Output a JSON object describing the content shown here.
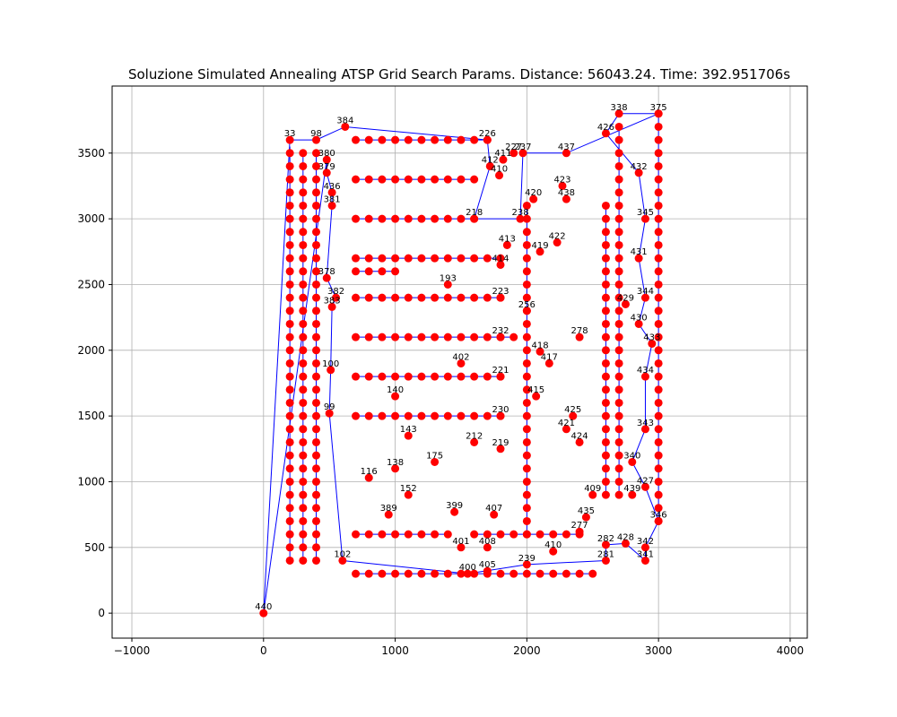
{
  "chart_data": {
    "type": "scatter",
    "title": "Soluzione Simulated Annealing ATSP Grid Search Params. Distance: 56043.24. Time: 392.951706s",
    "xlabel": "",
    "ylabel": "",
    "xlim": [
      -1150,
      4130
    ],
    "ylim": [
      -190,
      4010
    ],
    "x_ticks": [
      -1000,
      0,
      1000,
      2000,
      3000,
      4000
    ],
    "y_ticks": [
      0,
      500,
      1000,
      1500,
      2000,
      2500,
      3000,
      3500
    ],
    "x_tick_labels": [
      "−1000",
      "0",
      "1000",
      "2000",
      "3000",
      "4000"
    ],
    "y_tick_labels": [
      "0",
      "500",
      "1000",
      "1500",
      "2000",
      "2500",
      "3000",
      "3500"
    ],
    "grid": true,
    "colors": {
      "points": "#ff0000",
      "route": "#0000ff",
      "grid": "#b0b0b0"
    },
    "points": [
      {
        "id": "440",
        "x": 0,
        "y": 0
      },
      {
        "id": "384",
        "x": 620,
        "y": 3700
      },
      {
        "id": "98",
        "x": 400,
        "y": 3600
      },
      {
        "id": "33",
        "x": 200,
        "y": 3600
      },
      {
        "id": "380",
        "x": 480,
        "y": 3450
      },
      {
        "id": "379",
        "x": 480,
        "y": 3350
      },
      {
        "id": "436",
        "x": 520,
        "y": 3200
      },
      {
        "id": "381",
        "x": 520,
        "y": 3100
      },
      {
        "id": "378",
        "x": 480,
        "y": 2550
      },
      {
        "id": "382",
        "x": 550,
        "y": 2400
      },
      {
        "id": "383",
        "x": 520,
        "y": 2330
      },
      {
        "id": "100",
        "x": 510,
        "y": 1850
      },
      {
        "id": "99",
        "x": 500,
        "y": 1520
      },
      {
        "id": "102",
        "x": 600,
        "y": 400
      },
      {
        "id": "226",
        "x": 1700,
        "y": 3600
      },
      {
        "id": "227",
        "x": 1900,
        "y": 3500
      },
      {
        "id": "411",
        "x": 1820,
        "y": 3450
      },
      {
        "id": "410",
        "x": 1790,
        "y": 3330
      },
      {
        "id": "412",
        "x": 1720,
        "y": 3400
      },
      {
        "id": "218",
        "x": 1600,
        "y": 3000
      },
      {
        "id": "237",
        "x": 1970,
        "y": 3500
      },
      {
        "id": "238",
        "x": 1950,
        "y": 3000
      },
      {
        "id": "413",
        "x": 1850,
        "y": 2800
      },
      {
        "id": "414",
        "x": 1800,
        "y": 2650
      },
      {
        "id": "223",
        "x": 1800,
        "y": 2400
      },
      {
        "id": "232",
        "x": 1800,
        "y": 2100
      },
      {
        "id": "221",
        "x": 1800,
        "y": 1800
      },
      {
        "id": "230",
        "x": 1800,
        "y": 1500
      },
      {
        "id": "219",
        "x": 1800,
        "y": 1250
      },
      {
        "id": "212",
        "x": 1600,
        "y": 1300
      },
      {
        "id": "407",
        "x": 1750,
        "y": 750
      },
      {
        "id": "408",
        "x": 1700,
        "y": 500
      },
      {
        "id": "401",
        "x": 1500,
        "y": 500
      },
      {
        "id": "402",
        "x": 1500,
        "y": 1900
      },
      {
        "id": "193",
        "x": 1400,
        "y": 2500
      },
      {
        "id": "175",
        "x": 1300,
        "y": 1150
      },
      {
        "id": "152",
        "x": 1100,
        "y": 900
      },
      {
        "id": "143",
        "x": 1100,
        "y": 1350
      },
      {
        "id": "140",
        "x": 1000,
        "y": 1650
      },
      {
        "id": "116",
        "x": 800,
        "y": 1030
      },
      {
        "id": "138",
        "x": 1000,
        "y": 1100
      },
      {
        "id": "389",
        "x": 950,
        "y": 750
      },
      {
        "id": "399",
        "x": 1450,
        "y": 770
      },
      {
        "id": "400",
        "x": 1550,
        "y": 300
      },
      {
        "id": "405",
        "x": 1700,
        "y": 320
      },
      {
        "id": "239",
        "x": 2000,
        "y": 370
      },
      {
        "id": "410b",
        "x": 2200,
        "y": 470
      },
      {
        "id": "281",
        "x": 2600,
        "y": 400
      },
      {
        "id": "282",
        "x": 2600,
        "y": 520
      },
      {
        "id": "428",
        "x": 2750,
        "y": 530
      },
      {
        "id": "342",
        "x": 2900,
        "y": 500
      },
      {
        "id": "341",
        "x": 2900,
        "y": 400
      },
      {
        "id": "346",
        "x": 3000,
        "y": 700
      },
      {
        "id": "427",
        "x": 2900,
        "y": 960
      },
      {
        "id": "340",
        "x": 2800,
        "y": 1150
      },
      {
        "id": "343",
        "x": 2900,
        "y": 1400
      },
      {
        "id": "424",
        "x": 2400,
        "y": 1300
      },
      {
        "id": "425",
        "x": 2350,
        "y": 1500
      },
      {
        "id": "421",
        "x": 2300,
        "y": 1400
      },
      {
        "id": "415",
        "x": 2070,
        "y": 1650
      },
      {
        "id": "417",
        "x": 2170,
        "y": 1900
      },
      {
        "id": "418",
        "x": 2100,
        "y": 1990
      },
      {
        "id": "278",
        "x": 2400,
        "y": 2100
      },
      {
        "id": "256",
        "x": 2000,
        "y": 2300
      },
      {
        "id": "419",
        "x": 2100,
        "y": 2750
      },
      {
        "id": "422",
        "x": 2230,
        "y": 2820
      },
      {
        "id": "420",
        "x": 2050,
        "y": 3150
      },
      {
        "id": "423",
        "x": 2270,
        "y": 3250
      },
      {
        "id": "438",
        "x": 2300,
        "y": 3150
      },
      {
        "id": "437",
        "x": 2300,
        "y": 3500
      },
      {
        "id": "375",
        "x": 3000,
        "y": 3800
      },
      {
        "id": "338",
        "x": 2700,
        "y": 3800
      },
      {
        "id": "426",
        "x": 2600,
        "y": 3650
      },
      {
        "id": "432",
        "x": 2850,
        "y": 3350
      },
      {
        "id": "345",
        "x": 2900,
        "y": 3000
      },
      {
        "id": "431",
        "x": 2850,
        "y": 2700
      },
      {
        "id": "344",
        "x": 2900,
        "y": 2400
      },
      {
        "id": "430",
        "x": 2850,
        "y": 2200
      },
      {
        "id": "429",
        "x": 2750,
        "y": 2350
      },
      {
        "id": "433",
        "x": 2950,
        "y": 2050
      },
      {
        "id": "434",
        "x": 2900,
        "y": 1800
      },
      {
        "id": "439",
        "x": 2800,
        "y": 900
      },
      {
        "id": "409",
        "x": 2500,
        "y": 900
      },
      {
        "id": "435",
        "x": 2450,
        "y": 730
      },
      {
        "id": "277",
        "x": 2400,
        "y": 620
      }
    ],
    "grid_columns": [
      {
        "x": 200,
        "y_from": 400,
        "y_to": 3550,
        "step": 100
      },
      {
        "x": 300,
        "y_from": 400,
        "y_to": 3500,
        "step": 100
      },
      {
        "x": 400,
        "y_from": 400,
        "y_to": 3500,
        "step": 100
      },
      {
        "x": 2000,
        "y_from": 600,
        "y_to": 3100,
        "step": 100
      },
      {
        "x": 2600,
        "y_from": 900,
        "y_to": 3100,
        "step": 100
      },
      {
        "x": 2700,
        "y_from": 900,
        "y_to": 3700,
        "step": 100
      },
      {
        "x": 3000,
        "y_from": 700,
        "y_to": 3800,
        "step": 100
      }
    ],
    "grid_rows": [
      {
        "y": 3600,
        "x_from": 700,
        "x_to": 1700,
        "step": 100
      },
      {
        "y": 3300,
        "x_from": 700,
        "x_to": 1600,
        "step": 100
      },
      {
        "y": 3000,
        "x_from": 700,
        "x_to": 1600,
        "step": 100
      },
      {
        "y": 2700,
        "x_from": 700,
        "x_to": 1800,
        "step": 100
      },
      {
        "y": 2600,
        "x_from": 700,
        "x_to": 1000,
        "step": 100
      },
      {
        "y": 2400,
        "x_from": 700,
        "x_to": 1800,
        "step": 100
      },
      {
        "y": 2100,
        "x_from": 700,
        "x_to": 1900,
        "step": 100
      },
      {
        "y": 1800,
        "x_from": 700,
        "x_to": 1800,
        "step": 100
      },
      {
        "y": 1500,
        "x_from": 700,
        "x_to": 1800,
        "step": 100
      },
      {
        "y": 600,
        "x_from": 700,
        "x_to": 1400,
        "step": 100
      },
      {
        "y": 600,
        "x_from": 1600,
        "x_to": 2400,
        "step": 100
      },
      {
        "y": 300,
        "x_from": 700,
        "x_to": 2500,
        "step": 100
      }
    ],
    "route": [
      "440",
      "33",
      "98",
      "384",
      "226",
      "412",
      "218",
      "238",
      "237",
      "437",
      "375",
      "338",
      "426",
      "432",
      "345",
      "431",
      "344",
      "430",
      "433",
      "434",
      "343",
      "340",
      "427",
      "346",
      "342",
      "341",
      "428",
      "282",
      "281",
      "239",
      "400",
      "102",
      "99",
      "100",
      "383",
      "382",
      "378",
      "381",
      "436",
      "379",
      "380",
      "440"
    ]
  }
}
